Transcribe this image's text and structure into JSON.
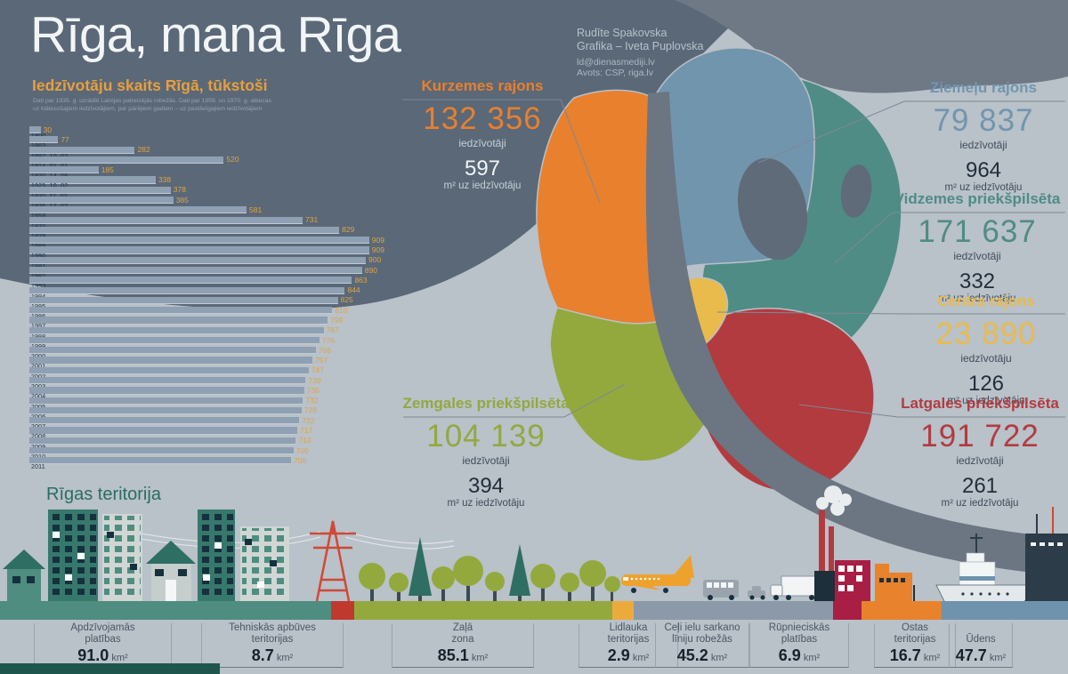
{
  "title": "Rīga, mana Rīga",
  "credits": {
    "author": "Rudīte Spakovska",
    "graphics": "Grafika – Iveta Puplovska",
    "email": "ld@dienasmediji.lv",
    "source": "Avots: CSP, riga.lv"
  },
  "chart_data": {
    "type": "bar",
    "title": "Iedzīvotāju skaits Rīgā, tūkstoši",
    "note": [
      "Dati par 1935. g. uzrādīti Latvijas patreizējās robežās. Dati par 1959. un 1970. g. attiecas",
      "uz klātesošajiem iedzīvotājiem, par pārējiem gadiem – uz pastāvīgajiem iedzīvotājiem"
    ],
    "categories": [
      "1800",
      "1863",
      "1897. 10. 02.",
      "1914. 01. 01.",
      "1920. 14. 06.",
      "1925. 10. 02.",
      "1930. 11. 02.",
      "1935. 12. 02.",
      "1959",
      "1970",
      "1979",
      "1989",
      "1990",
      "1991",
      "1992",
      "1993",
      "1994",
      "1995",
      "1996",
      "1997",
      "1998",
      "1999",
      "2000",
      "2001",
      "2002",
      "2003",
      "2004",
      "2005",
      "2006",
      "2007",
      "2008",
      "2009",
      "2010",
      "2011"
    ],
    "values": [
      30,
      77,
      282,
      520,
      185,
      338,
      378,
      385,
      581,
      731,
      829,
      909,
      909,
      900,
      890,
      863,
      844,
      825,
      810,
      798,
      787,
      776,
      766,
      757,
      747,
      739,
      735,
      732,
      728,
      722,
      717,
      713,
      706,
      700
    ],
    "xlim": [
      0,
      909
    ],
    "grid": false,
    "legend": "none",
    "bar_color": "#8fa0b3",
    "value_color": "#e2a440"
  },
  "districts": [
    {
      "name": "Kurzemes rajons",
      "population": "132 356",
      "population_label": "iedzīvotāji",
      "density": "597",
      "density_label": "m² uz iedzīvotāju",
      "color": "#e8802e"
    },
    {
      "name": "Ziemeļu rajons",
      "population": "79 837",
      "population_label": "iedzīvotāji",
      "density": "964",
      "density_label": "m² uz iedzīvotāju",
      "color": "#7295ae"
    },
    {
      "name": "Vidzemes priekšpilsēta",
      "population": "171 637",
      "population_label": "iedzīvotāji",
      "density": "332",
      "density_label": "m² uz iedzīvotāju",
      "color": "#4f8c86"
    },
    {
      "name": "Centra rajons",
      "population": "23 890",
      "population_label": "iedzīvotāju",
      "density": "126",
      "density_label": "m² uz iedzīvotāju",
      "color": "#e9bb4d"
    },
    {
      "name": "Latgales priekšpilsēta",
      "population": "191 722",
      "population_label": "iedzīvotāji",
      "density": "261",
      "density_label": "m² uz iedzīvotāju",
      "color": "#b23b40"
    },
    {
      "name": "Zemgales priekšpilsēta",
      "population": "104 139",
      "population_label": "iedzīvotāji",
      "density": "394",
      "density_label": "m² uz iedzīvotāju",
      "color": "#93a93e"
    }
  ],
  "territory": {
    "title": "Rīgas teritorija",
    "items": [
      {
        "label": [
          "Apdzīvojamās",
          "platības"
        ],
        "value": "91.0",
        "unit": "km²",
        "color": "#4e8d80"
      },
      {
        "label": [
          "Tehniskās apbūves",
          "teritorijas"
        ],
        "value": "8.7",
        "unit": "km²",
        "color": "#c0392f"
      },
      {
        "label": [
          "Zaļā",
          "zona"
        ],
        "value": "85.1",
        "unit": "km²",
        "color": "#93a93e"
      },
      {
        "label": [
          "Lidlauka",
          "teritorijas"
        ],
        "value": "2.9",
        "unit": "km²",
        "color": "#edaa3c"
      },
      {
        "label": [
          "Ceļi ielu sarkano",
          "līniju robežās"
        ],
        "value": "45.2",
        "unit": "km²",
        "color": "#8b99a8"
      },
      {
        "label": [
          "Rūpnieciskās",
          "platības"
        ],
        "value": "6.9",
        "unit": "km²",
        "color": "#a81e44"
      },
      {
        "label": [
          "Ostas",
          "teritorijas"
        ],
        "value": "16.7",
        "unit": "km²",
        "color": "#e8822c"
      },
      {
        "label": [
          "Ūdens"
        ],
        "value": "47.7",
        "unit": "km²",
        "color": "#6f93ad"
      }
    ]
  },
  "illustration_icons": [
    "house-icon",
    "apartment-tower-icon",
    "power-pylon-icon",
    "power-lines-icon",
    "tree-icon",
    "pine-tree-icon",
    "airplane-icon",
    "bus-icon",
    "car-icon",
    "truck-icon",
    "factory-icon",
    "smoke-icon",
    "port-building-icon",
    "cargo-ship-icon",
    "harbor-building-icon"
  ]
}
